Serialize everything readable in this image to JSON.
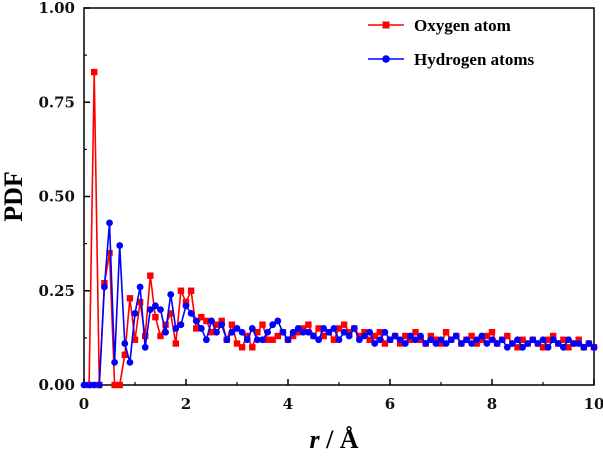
{
  "chart_data": {
    "type": "line",
    "title": "",
    "xlabel_var": "r",
    "xlabel_unit": " / Å",
    "ylabel": "PDF",
    "xlim": [
      0,
      10
    ],
    "ylim": [
      0,
      1.0
    ],
    "x_ticks": [
      0,
      2,
      4,
      6,
      8,
      10
    ],
    "x_tick_labels": [
      "0",
      "2",
      "4",
      "6",
      "8",
      "10"
    ],
    "y_ticks": [
      0,
      0.25,
      0.5,
      0.75,
      1.0
    ],
    "y_tick_labels": [
      "0.00",
      "0.25",
      "0.50",
      "0.75",
      "1.00"
    ],
    "legend_position": "top-right",
    "series": [
      {
        "name": "Oxygen atom",
        "color": "#ff0000",
        "marker": "square",
        "x": [
          0.1,
          0.2,
          0.3,
          0.4,
          0.5,
          0.6,
          0.7,
          0.8,
          0.9,
          1.0,
          1.1,
          1.2,
          1.3,
          1.4,
          1.5,
          1.6,
          1.7,
          1.8,
          1.9,
          2.0,
          2.1,
          2.2,
          2.3,
          2.4,
          2.5,
          2.6,
          2.7,
          2.8,
          2.9,
          3.0,
          3.1,
          3.2,
          3.3,
          3.4,
          3.5,
          3.6,
          3.7,
          3.8,
          3.9,
          4.0,
          4.1,
          4.2,
          4.3,
          4.4,
          4.5,
          4.6,
          4.7,
          4.8,
          4.9,
          5.0,
          5.1,
          5.2,
          5.3,
          5.4,
          5.5,
          5.6,
          5.7,
          5.8,
          5.9,
          6.0,
          6.1,
          6.2,
          6.3,
          6.4,
          6.5,
          6.6,
          6.7,
          6.8,
          6.9,
          7.0,
          7.1,
          7.2,
          7.3,
          7.4,
          7.5,
          7.6,
          7.7,
          7.8,
          7.9,
          8.0,
          8.1,
          8.2,
          8.3,
          8.4,
          8.5,
          8.6,
          8.7,
          8.8,
          8.9,
          9.0,
          9.1,
          9.2,
          9.3,
          9.4,
          9.5,
          9.6,
          9.7,
          9.8,
          9.9,
          10.0
        ],
        "y": [
          0,
          0.83,
          0,
          0.27,
          0.35,
          0,
          0,
          0.08,
          0.23,
          0.12,
          0.22,
          0.13,
          0.29,
          0.18,
          0.13,
          0.16,
          0.19,
          0.11,
          0.25,
          0.22,
          0.25,
          0.15,
          0.18,
          0.17,
          0.14,
          0.16,
          0.17,
          0.12,
          0.16,
          0.11,
          0.1,
          0.13,
          0.1,
          0.14,
          0.16,
          0.12,
          0.12,
          0.13,
          0.14,
          0.12,
          0.13,
          0.14,
          0.15,
          0.16,
          0.13,
          0.15,
          0.13,
          0.14,
          0.12,
          0.15,
          0.16,
          0.14,
          0.15,
          0.13,
          0.14,
          0.12,
          0.13,
          0.14,
          0.11,
          0.12,
          0.13,
          0.11,
          0.13,
          0.12,
          0.14,
          0.12,
          0.11,
          0.13,
          0.12,
          0.11,
          0.14,
          0.12,
          0.13,
          0.11,
          0.12,
          0.13,
          0.11,
          0.12,
          0.13,
          0.14,
          0.11,
          0.12,
          0.13,
          0.11,
          0.1,
          0.12,
          0.11,
          0.12,
          0.11,
          0.1,
          0.12,
          0.13,
          0.11,
          0.12,
          0.1,
          0.11,
          0.12,
          0.1,
          0.11,
          0.1
        ]
      },
      {
        "name": "Hydrogen atoms",
        "color": "#0000ff",
        "marker": "circle",
        "x": [
          0.0,
          0.1,
          0.2,
          0.3,
          0.4,
          0.5,
          0.6,
          0.7,
          0.8,
          0.9,
          1.0,
          1.1,
          1.2,
          1.3,
          1.4,
          1.5,
          1.6,
          1.7,
          1.8,
          1.9,
          2.0,
          2.1,
          2.2,
          2.3,
          2.4,
          2.5,
          2.6,
          2.7,
          2.8,
          2.9,
          3.0,
          3.1,
          3.2,
          3.3,
          3.4,
          3.5,
          3.6,
          3.7,
          3.8,
          3.9,
          4.0,
          4.1,
          4.2,
          4.3,
          4.4,
          4.5,
          4.6,
          4.7,
          4.8,
          4.9,
          5.0,
          5.1,
          5.2,
          5.3,
          5.4,
          5.5,
          5.6,
          5.7,
          5.8,
          5.9,
          6.0,
          6.1,
          6.2,
          6.3,
          6.4,
          6.5,
          6.6,
          6.7,
          6.8,
          6.9,
          7.0,
          7.1,
          7.2,
          7.3,
          7.4,
          7.5,
          7.6,
          7.7,
          7.8,
          7.9,
          8.0,
          8.1,
          8.2,
          8.3,
          8.4,
          8.5,
          8.6,
          8.7,
          8.8,
          8.9,
          9.0,
          9.1,
          9.2,
          9.3,
          9.4,
          9.5,
          9.6,
          9.7,
          9.8,
          9.9,
          10.0
        ],
        "y": [
          0,
          0,
          0,
          0,
          0.26,
          0.43,
          0.06,
          0.37,
          0.11,
          0.06,
          0.19,
          0.26,
          0.1,
          0.2,
          0.21,
          0.2,
          0.14,
          0.24,
          0.15,
          0.16,
          0.21,
          0.19,
          0.17,
          0.15,
          0.12,
          0.17,
          0.14,
          0.16,
          0.12,
          0.14,
          0.15,
          0.14,
          0.12,
          0.15,
          0.12,
          0.12,
          0.14,
          0.16,
          0.17,
          0.14,
          0.12,
          0.14,
          0.15,
          0.14,
          0.14,
          0.13,
          0.12,
          0.15,
          0.14,
          0.15,
          0.12,
          0.14,
          0.13,
          0.15,
          0.12,
          0.13,
          0.14,
          0.11,
          0.12,
          0.14,
          0.12,
          0.13,
          0.12,
          0.11,
          0.13,
          0.12,
          0.13,
          0.11,
          0.12,
          0.11,
          0.12,
          0.11,
          0.12,
          0.13,
          0.11,
          0.12,
          0.11,
          0.12,
          0.13,
          0.11,
          0.12,
          0.11,
          0.12,
          0.1,
          0.11,
          0.12,
          0.1,
          0.11,
          0.12,
          0.11,
          0.12,
          0.1,
          0.12,
          0.11,
          0.1,
          0.12,
          0.11,
          0.11,
          0.1,
          0.11,
          0.1
        ]
      }
    ]
  }
}
